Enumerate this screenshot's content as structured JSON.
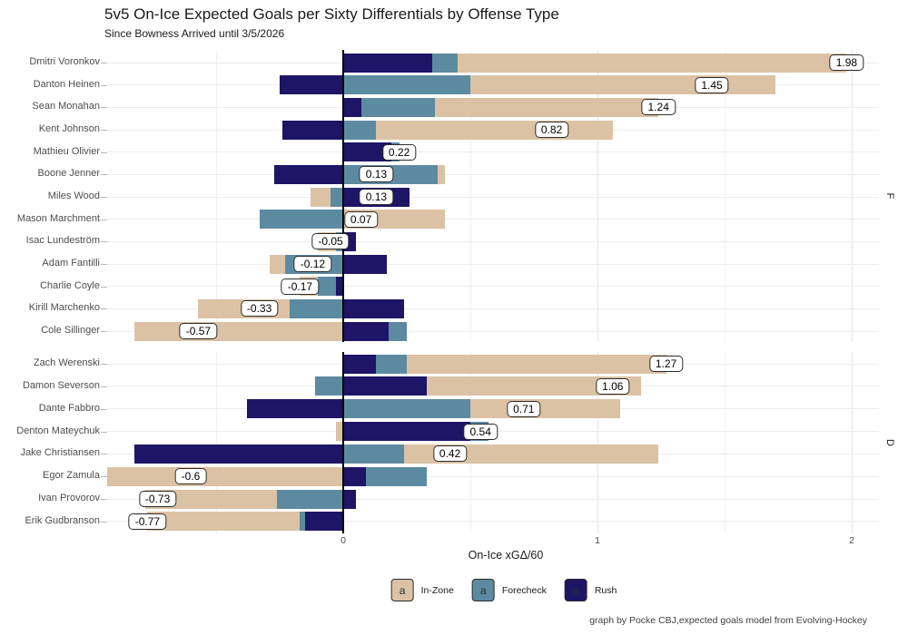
{
  "chart_data": {
    "type": "bar",
    "orientation": "horizontal-stacked-diverging",
    "title": "5v5 On-Ice Expected Goals per Sixty Differentials by Offense Type",
    "subtitle": "Since Bowness Arrived until 3/5/2026",
    "xlabel": "On-Ice xGΔ/60",
    "caption": "graph by Pocke CBJ,expected goals model from Evolving-Hockey",
    "x_ticks": [
      {
        "value": 0,
        "label": "0"
      },
      {
        "value": 1,
        "label": "1"
      },
      {
        "value": 2,
        "label": "2"
      }
    ],
    "xlim": [
      -0.93,
      2.11
    ],
    "gridlines": {
      "major": [
        0,
        1,
        2
      ],
      "minor": [
        -0.5,
        0.5,
        1.5
      ]
    },
    "series_order": [
      "rush",
      "forecheck",
      "inzone"
    ],
    "colors": {
      "inzone": "#dcc2a4",
      "forecheck": "#5c8ba1",
      "rush": "#1e1566",
      "zero_line": "#000000",
      "grid": "#ececec",
      "axis_text": "#4d4d4d"
    },
    "legend": {
      "position": "bottom",
      "glyph": "a",
      "items": [
        {
          "label": "In-Zone",
          "key": "inzone"
        },
        {
          "label": "Forecheck",
          "key": "forecheck"
        },
        {
          "label": "Rush",
          "key": "rush"
        }
      ]
    },
    "facets": [
      {
        "label": "F",
        "players": [
          {
            "name": "Dmitri Voronkov",
            "rush": 0.35,
            "forecheck": 0.1,
            "inzone": 1.53,
            "total": 1.98,
            "total_label": "1.98"
          },
          {
            "name": "Danton Heinen",
            "rush": -0.25,
            "forecheck": 0.5,
            "inzone": 1.2,
            "total": 1.45,
            "total_label": "1.45"
          },
          {
            "name": "Sean Monahan",
            "rush": 0.07,
            "forecheck": 0.29,
            "inzone": 0.88,
            "total": 1.24,
            "total_label": "1.24"
          },
          {
            "name": "Kent Johnson",
            "rush": -0.24,
            "forecheck": 0.13,
            "inzone": 0.93,
            "total": 0.82,
            "total_label": "0.82"
          },
          {
            "name": "Mathieu Olivier",
            "rush": 0.19,
            "forecheck": 0.03,
            "inzone": 0.0,
            "total": 0.22,
            "total_label": "0.22"
          },
          {
            "name": "Boone Jenner",
            "rush": -0.27,
            "forecheck": 0.37,
            "inzone": 0.03,
            "total": 0.13,
            "total_label": "0.13"
          },
          {
            "name": "Miles Wood",
            "rush": 0.26,
            "forecheck": -0.05,
            "inzone": -0.08,
            "total": 0.13,
            "total_label": "0.13"
          },
          {
            "name": "Mason Marchment",
            "rush": 0.0,
            "forecheck": -0.33,
            "inzone": 0.4,
            "total": 0.07,
            "total_label": "0.07"
          },
          {
            "name": "Isac Lundeström",
            "rush": 0.05,
            "forecheck": -0.03,
            "inzone": -0.07,
            "total": -0.05,
            "total_label": "-0.05"
          },
          {
            "name": "Adam Fantilli",
            "rush": 0.17,
            "forecheck": -0.23,
            "inzone": -0.06,
            "total": -0.12,
            "total_label": "-0.12"
          },
          {
            "name": "Charlie Coyle",
            "rush": -0.03,
            "forecheck": -0.07,
            "inzone": -0.07,
            "total": -0.17,
            "total_label": "-0.17"
          },
          {
            "name": "Kirill Marchenko",
            "rush": 0.24,
            "forecheck": -0.21,
            "inzone": -0.36,
            "total": -0.33,
            "total_label": "-0.33"
          },
          {
            "name": "Cole Sillinger",
            "rush": 0.18,
            "forecheck": 0.07,
            "inzone": -0.82,
            "total": -0.57,
            "total_label": "-0.57"
          }
        ]
      },
      {
        "label": "D",
        "players": [
          {
            "name": "Zach Werenski",
            "rush": 0.13,
            "forecheck": 0.12,
            "inzone": 1.02,
            "total": 1.27,
            "total_label": "1.27"
          },
          {
            "name": "Damon Severson",
            "rush": 0.33,
            "forecheck": -0.11,
            "inzone": 0.84,
            "total": 1.06,
            "total_label": "1.06"
          },
          {
            "name": "Dante Fabbro",
            "rush": -0.38,
            "forecheck": 0.5,
            "inzone": 0.59,
            "total": 0.71,
            "total_label": "0.71"
          },
          {
            "name": "Denton Mateychuk",
            "rush": 0.5,
            "forecheck": 0.07,
            "inzone": -0.03,
            "total": 0.54,
            "total_label": "0.54"
          },
          {
            "name": "Jake Christiansen",
            "rush": -0.82,
            "forecheck": 0.24,
            "inzone": 1.0,
            "total": 0.42,
            "total_label": "0.42"
          },
          {
            "name": "Egor Zamula",
            "rush": 0.09,
            "forecheck": 0.24,
            "inzone": -0.93,
            "total": -0.6,
            "total_label": "-0.6"
          },
          {
            "name": "Ivan Provorov",
            "rush": 0.05,
            "forecheck": -0.26,
            "inzone": -0.52,
            "total": -0.73,
            "total_label": "-0.73"
          },
          {
            "name": "Erik Gudbranson",
            "rush": -0.15,
            "forecheck": -0.02,
            "inzone": -0.6,
            "total": -0.77,
            "total_label": "-0.77"
          }
        ]
      }
    ]
  }
}
